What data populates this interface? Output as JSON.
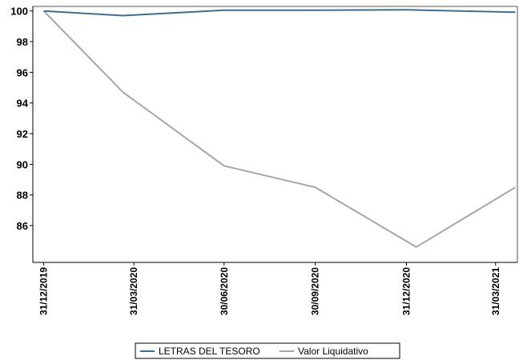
{
  "chart_data": {
    "type": "line",
    "title": "",
    "xlabel": "",
    "ylabel": "",
    "x": [
      "31/12/2019",
      "31/03/2020",
      "30/06/2020",
      "30/09/2020",
      "31/12/2020",
      "31/03/2021"
    ],
    "series": [
      {
        "name": "LETRAS DEL TESORO",
        "color": "#3f6d91",
        "points": [
          {
            "x": "2019-12-31",
            "y": 100.0
          },
          {
            "x": "2020-03-20",
            "y": 99.7
          },
          {
            "x": "2020-06-30",
            "y": 100.05
          },
          {
            "x": "2020-09-30",
            "y": 100.05
          },
          {
            "x": "2020-12-31",
            "y": 100.08
          },
          {
            "x": "2021-04-20",
            "y": 99.92
          }
        ]
      },
      {
        "name": "Valor Liquidativo",
        "color": "#a6a6a6",
        "points": [
          {
            "x": "2019-12-31",
            "y": 100.0
          },
          {
            "x": "2020-03-20",
            "y": 94.7
          },
          {
            "x": "2020-06-30",
            "y": 89.9
          },
          {
            "x": "2020-09-30",
            "y": 88.5
          },
          {
            "x": "2021-01-10",
            "y": 84.6
          },
          {
            "x": "2021-04-20",
            "y": 88.5
          }
        ]
      }
    ],
    "y_ticks": [
      86,
      88,
      90,
      92,
      94,
      96,
      98,
      100
    ],
    "ylim": [
      83.6,
      100.3
    ],
    "xlim": [
      "2019-12-20",
      "2021-04-22"
    ],
    "grid": false,
    "legend": "bottom"
  }
}
